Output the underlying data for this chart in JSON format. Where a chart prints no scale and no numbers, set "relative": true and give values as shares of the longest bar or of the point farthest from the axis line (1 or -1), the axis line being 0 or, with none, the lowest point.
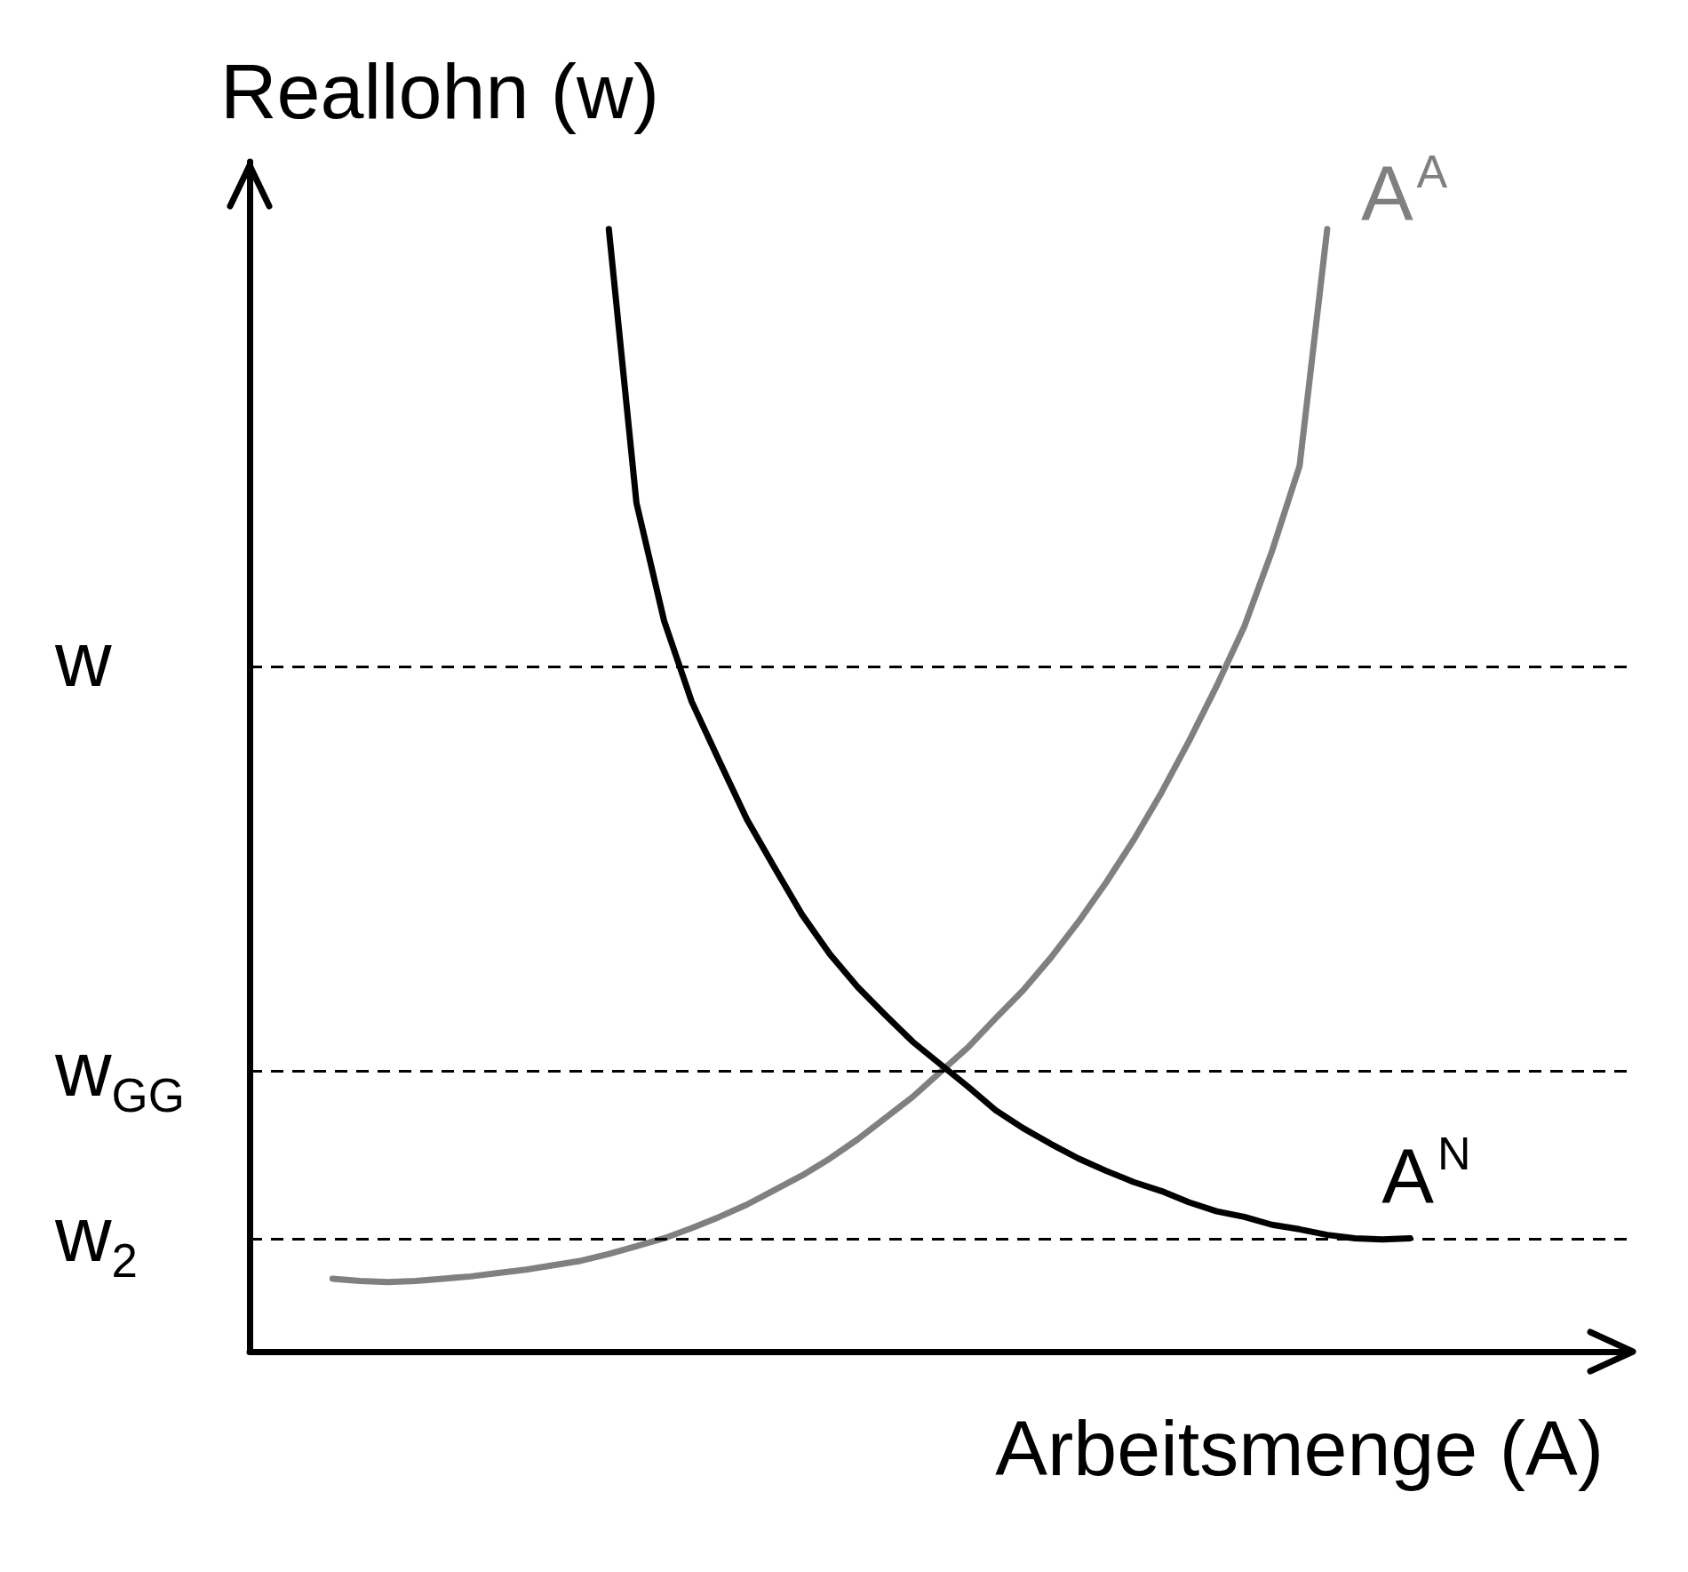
{
  "chart_data": {
    "type": "line",
    "relative": true,
    "xlabel": "Arbeitsmenge (A)",
    "ylabel": "Reallohn (w)",
    "marker": "none",
    "line_style": "solid",
    "grid": false,
    "categories": [
      null,
      null,
      null,
      null,
      null,
      null,
      null,
      null,
      null,
      null,
      null,
      null,
      null,
      null,
      null,
      null,
      null,
      null,
      null,
      null,
      null,
      null,
      null,
      null,
      null,
      null,
      null,
      null,
      null,
      null,
      null,
      null,
      null,
      null,
      null,
      null,
      null,
      null,
      null,
      null,
      null,
      null,
      null,
      null,
      null,
      null,
      null,
      null,
      null,
      null,
      null
    ],
    "series": [
      {
        "name": "A$^{A}$",
        "color": "#808080",
        "values": [
          null,
          null,
          null,
          0.065,
          0.063,
          0.062,
          0.063,
          0.065,
          0.067,
          0.07,
          0.073,
          0.077,
          0.081,
          0.087,
          0.094,
          0.101,
          0.11,
          0.12,
          0.131,
          0.144,
          0.157,
          0.172,
          0.189,
          0.208,
          0.227,
          0.249,
          0.271,
          0.297,
          0.322,
          0.351,
          0.383,
          0.418,
          0.456,
          0.498,
          0.544,
          0.593,
          0.646,
          0.713,
          0.789,
          1,
          null,
          null,
          null,
          null,
          null,
          null,
          null,
          null,
          null,
          null,
          null
        ]
      },
      {
        "name": "A$^{N}$",
        "color": "#000000",
        "values": [
          null,
          null,
          null,
          null,
          null,
          null,
          null,
          null,
          null,
          null,
          null,
          null,
          null,
          1,
          0.756,
          0.651,
          0.579,
          0.526,
          0.474,
          0.431,
          0.389,
          0.354,
          0.325,
          0.3,
          0.276,
          0.256,
          0.236,
          0.215,
          0.199,
          0.185,
          0.172,
          0.161,
          0.151,
          0.143,
          0.133,
          0.125,
          0.12,
          0.113,
          0.109,
          0.104,
          0.101,
          0.1,
          0.101,
          null,
          null,
          null,
          null,
          null,
          null,
          null,
          null
        ]
      }
    ],
    "ref_lines": [
      {
        "axis": "y",
        "value": 0.612,
        "label": "w",
        "line_style": "dashed",
        "color": "#000000"
      },
      {
        "axis": "y",
        "value": 0.247,
        "label": "w$_{GG}$",
        "line_style": "dashed",
        "color": "#000000"
      },
      {
        "axis": "y",
        "value": 0.1,
        "label": "w$_{2}$",
        "line_style": "dashed",
        "color": "#000000"
      }
    ]
  }
}
